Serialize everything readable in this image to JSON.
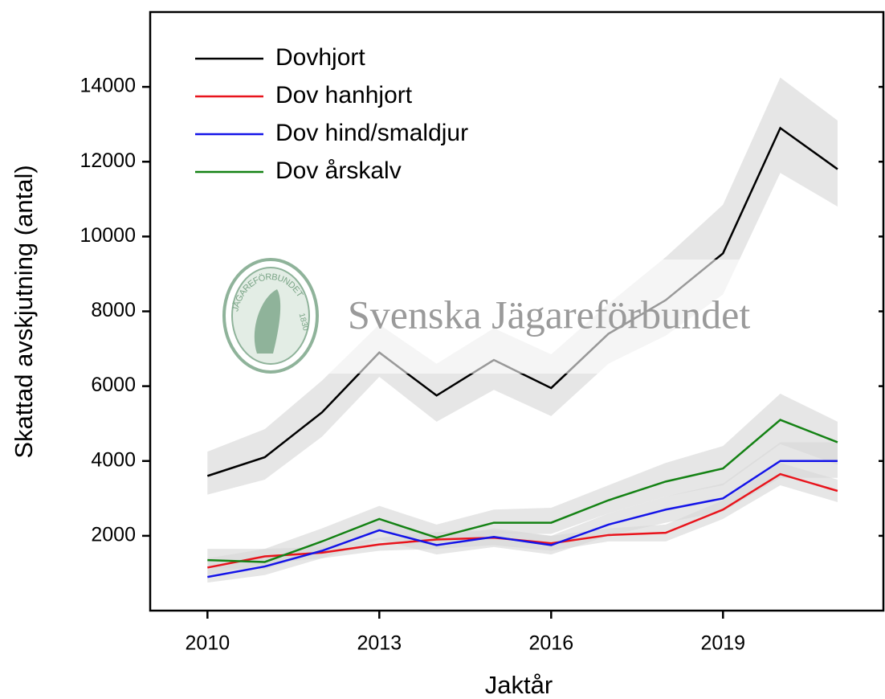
{
  "chart_data": {
    "type": "line",
    "xlabel": "Jaktår",
    "ylabel": "Skattad avskjutning (antal)",
    "x": [
      2010,
      2011,
      2012,
      2013,
      2014,
      2015,
      2016,
      2017,
      2018,
      2019,
      2020,
      2021
    ],
    "xlim": [
      2009,
      2021.8
    ],
    "xticks": [
      2010,
      2013,
      2016,
      2019
    ],
    "ylim": [
      0,
      16000
    ],
    "yticks": [
      2000,
      4000,
      6000,
      8000,
      10000,
      12000,
      14000
    ],
    "legend": "upper left",
    "band_color": "#d9d9d9",
    "watermark": {
      "text": "Svenska Jägareförbundet",
      "logo_text": "JÄGAREFÖRBUNDET",
      "logo_year": "1830"
    },
    "series": [
      {
        "name": "Dovhjort",
        "color": "#000000",
        "values": [
          3600,
          4100,
          5300,
          6900,
          5750,
          6700,
          5950,
          7400,
          8300,
          9550,
          12900,
          11800
        ],
        "lower": [
          3100,
          3500,
          4650,
          6250,
          5050,
          5900,
          5200,
          6600,
          7350,
          8450,
          11700,
          10800
        ],
        "upper": [
          4250,
          4850,
          6150,
          7650,
          6600,
          7550,
          6850,
          8200,
          9450,
          10850,
          14250,
          13100
        ]
      },
      {
        "name": "Dov hanhjort",
        "color": "#e8141c",
        "values": [
          1150,
          1450,
          1550,
          1770,
          1900,
          1950,
          1800,
          2020,
          2080,
          2700,
          3650,
          3200
        ],
        "lower": [
          950,
          1250,
          1400,
          1600,
          1650,
          1750,
          1600,
          1850,
          1850,
          2450,
          3350,
          2900
        ],
        "upper": [
          1400,
          1650,
          1700,
          1950,
          2100,
          2150,
          2000,
          2200,
          2300,
          2950,
          3950,
          3500
        ]
      },
      {
        "name": "Dov hind/smaldjur",
        "color": "#1414e8",
        "values": [
          900,
          1180,
          1600,
          2150,
          1750,
          1970,
          1750,
          2300,
          2700,
          3000,
          4000,
          4000
        ],
        "lower": [
          750,
          950,
          1400,
          1900,
          1500,
          1700,
          1500,
          2000,
          2350,
          2650,
          3550,
          3550
        ],
        "upper": [
          1100,
          1400,
          1800,
          2400,
          1950,
          2200,
          2000,
          2600,
          3050,
          3400,
          4500,
          4500
        ]
      },
      {
        "name": "Dov årskalv",
        "color": "#148214",
        "values": [
          1350,
          1300,
          1850,
          2450,
          1950,
          2350,
          2350,
          2950,
          3450,
          3800,
          5100,
          4500
        ],
        "lower": [
          1150,
          1100,
          1600,
          2150,
          1700,
          2050,
          2050,
          2600,
          3050,
          3350,
          4450,
          3900
        ],
        "upper": [
          1650,
          1650,
          2200,
          2800,
          2300,
          2700,
          2750,
          3350,
          3950,
          4400,
          5800,
          5050
        ]
      }
    ]
  }
}
